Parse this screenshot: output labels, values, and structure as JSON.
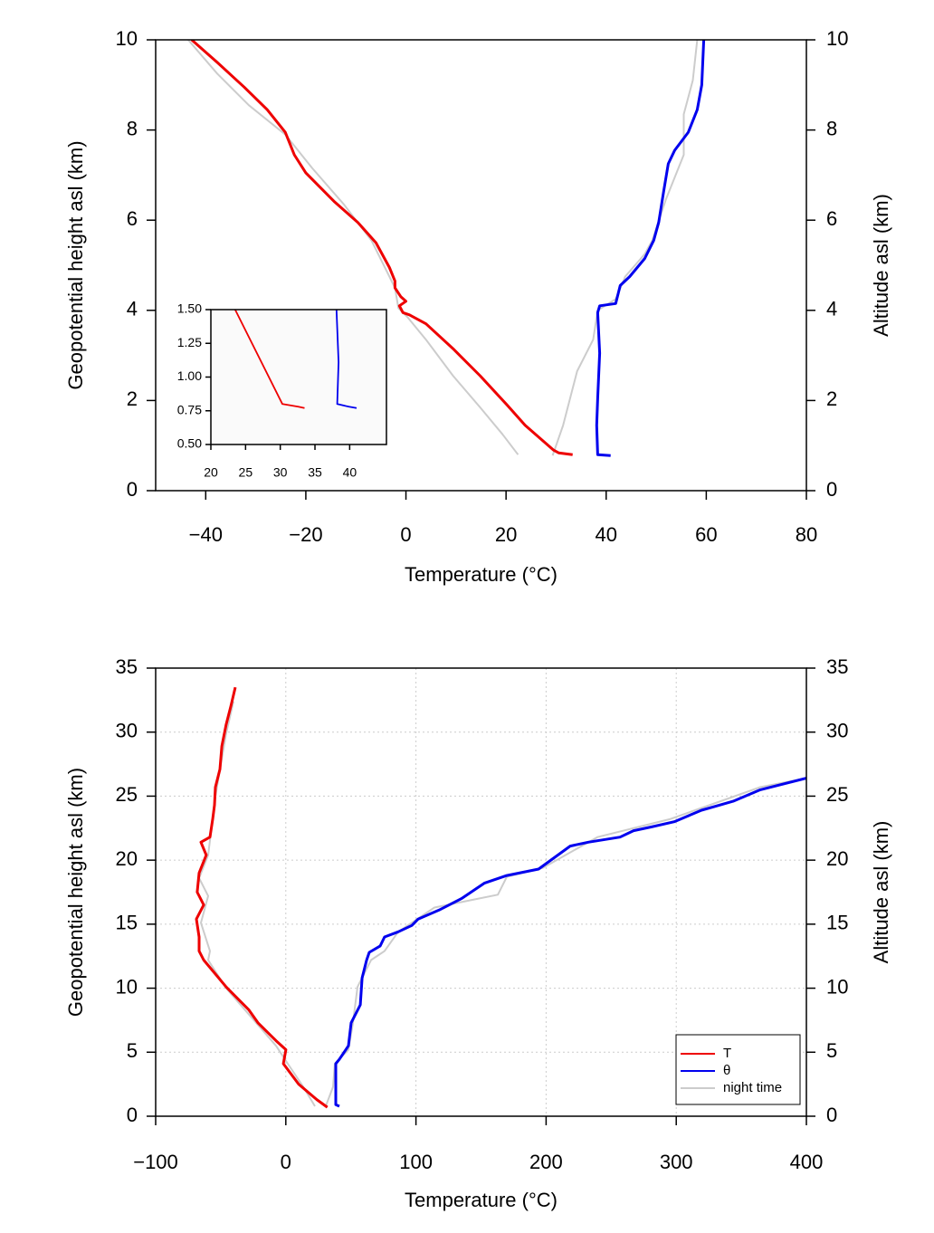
{
  "chart_data": [
    {
      "type": "line",
      "xlabel": "Temperature (°C)",
      "ylabel": "Geopotential height asl (km)",
      "y2label": "Altitude asl (km)",
      "xlim": [
        -50,
        80
      ],
      "ylim": [
        0,
        10
      ],
      "y2lim": [
        0,
        10
      ],
      "grid": false,
      "xticks": [
        {
          "value": -40,
          "label": "−40"
        },
        {
          "value": -20,
          "label": "−20"
        },
        0,
        20,
        40,
        60,
        80
      ],
      "yticks": [
        0,
        2,
        4,
        6,
        8,
        10
      ],
      "y2ticks": [
        0,
        2,
        4,
        6,
        8,
        10
      ],
      "series": [
        {
          "color": "#ee0000",
          "x": [
            33.3,
            30.5,
            29.5,
            23.8,
            20.2,
            14.8,
            9.4,
            4,
            0.7,
            -0.6,
            -1.3,
            0,
            -1,
            -2.2,
            -2.2,
            -3.3,
            -6,
            -9.6,
            -14.2,
            -20,
            -22.3,
            -24.1,
            -27.7,
            -32.3,
            -37.7,
            -42.8
          ],
          "y": [
            0.8,
            0.84,
            0.9,
            1.45,
            1.9,
            2.55,
            3.15,
            3.7,
            3.9,
            3.95,
            4.1,
            4.2,
            4.3,
            4.5,
            4.65,
            4.95,
            5.5,
            5.95,
            6.4,
            7.05,
            7.45,
            7.95,
            8.45,
            8.95,
            9.5,
            10
          ]
        },
        {
          "color": "#0000ee",
          "x": [
            40.9,
            38.3,
            38.1,
            38.3,
            38.7,
            38.3,
            38.7,
            41.9,
            42.8,
            44.7,
            47.7,
            49.5,
            50.5,
            51.5,
            52.4,
            53.7,
            56.4,
            58.2,
            59.1,
            59.5
          ],
          "y": [
            0.78,
            0.8,
            1.45,
            2.05,
            3.05,
            3.95,
            4.1,
            4.15,
            4.55,
            4.75,
            5.15,
            5.55,
            5.95,
            6.65,
            7.25,
            7.55,
            7.95,
            8.45,
            9.0,
            10
          ]
        },
        {
          "color": "#cccccc",
          "x": [
            22.4,
            19.3,
            14.8,
            9.4,
            4,
            0.3,
            -1.5,
            -2.2,
            -6.9,
            -12.4,
            -18.7,
            -24.1,
            -31.4,
            -37.7,
            -43.5
          ],
          "y": [
            0.8,
            1.25,
            1.85,
            2.55,
            3.35,
            3.85,
            4.05,
            4.5,
            5.55,
            6.35,
            7.15,
            7.9,
            8.55,
            9.25,
            10
          ]
        },
        {
          "color": "#cccccc",
          "x": [
            29.3,
            31.4,
            34.2,
            37.4,
            38.3,
            41.9,
            43.8,
            47.7,
            49.2,
            51.9,
            55.5,
            55.5,
            57.3,
            58.2
          ],
          "y": [
            0.78,
            1.45,
            2.65,
            3.35,
            4.0,
            4.25,
            4.75,
            5.25,
            5.55,
            6.45,
            7.45,
            8.35,
            9.1,
            10
          ]
        }
      ]
    },
    {
      "type": "line",
      "xlim": [
        20,
        45.3
      ],
      "ylim": [
        0.5,
        1.5
      ],
      "grid": false,
      "xticks": [
        20,
        25,
        30,
        35,
        40
      ],
      "yticks": [
        {
          "value": 0.5,
          "label": "0.50"
        },
        {
          "value": 0.75,
          "label": "0.75"
        },
        {
          "value": 1,
          "label": "1.00"
        },
        {
          "value": 1.25,
          "label": "1.25"
        },
        {
          "value": 1.5,
          "label": "1.50"
        }
      ],
      "series": [
        {
          "color": "#ee0000",
          "x": [
            23.5,
            30.3,
            32.6,
            33.5
          ],
          "y": [
            1.5,
            0.8,
            0.78,
            0.77
          ]
        },
        {
          "color": "#0000ee",
          "x": [
            38.1,
            38.4,
            38.2,
            39.9,
            41
          ],
          "y": [
            1.5,
            1.11,
            0.8,
            0.78,
            0.77
          ]
        }
      ]
    },
    {
      "type": "line",
      "xlabel": "Temperature (°C)",
      "ylabel": "Geopotential height asl (km)",
      "y2label": "Altitude asl (km)",
      "xlim": [
        -100,
        400
      ],
      "ylim": [
        0,
        35
      ],
      "y2lim": [
        0,
        35
      ],
      "grid": true,
      "legend": "lower right",
      "xticks": [
        {
          "value": -100,
          "label": "−100"
        },
        0,
        100,
        200,
        300,
        400
      ],
      "yticks": [
        0,
        5,
        10,
        15,
        20,
        25,
        30,
        35
      ],
      "y2ticks": [
        0,
        5,
        10,
        15,
        20,
        25,
        30,
        35
      ],
      "series": [
        {
          "name": "T",
          "color": "#ee0000",
          "x": [
            31.9,
            23.8,
            9.9,
            -1.9,
            0.1,
            -7.5,
            -21.4,
            -28.4,
            -45.8,
            -63.1,
            -66.6,
            -66.6,
            -68.7,
            -63.1,
            -68.1,
            -66.6,
            -61.1,
            -65.2,
            -58.3,
            -56.2,
            -54.8,
            -54.1,
            -50.6,
            -49.2,
            -45.8,
            -42.3,
            -38.8
          ],
          "y": [
            0.7,
            1.3,
            2.5,
            4.1,
            5.2,
            5.9,
            7.3,
            8.3,
            10.1,
            12.2,
            12.9,
            14,
            15.4,
            16.5,
            17.5,
            19,
            20.4,
            21.4,
            21.8,
            23.2,
            24.3,
            25.7,
            27.1,
            28.9,
            30.6,
            32,
            33.5
          ]
        },
        {
          "name": "θ",
          "color": "#0000ee",
          "x": [
            41.2,
            38.4,
            38.4,
            41.2,
            48.1,
            50.2,
            57.2,
            58.6,
            62.1,
            64.1,
            72.5,
            75.9,
            86.4,
            96.8,
            101.7,
            117.7,
            135,
            152.5,
            169.8,
            194.2,
            218.5,
            232.4,
            256.8,
            267.2,
            281.1,
            298.5,
            319.4,
            343.7,
            364.6,
            400
          ],
          "y": [
            0.78,
            0.9,
            4.1,
            4.45,
            5.5,
            7.3,
            8.7,
            10.8,
            12.2,
            12.8,
            13.3,
            14,
            14.4,
            14.9,
            15.4,
            16.1,
            17,
            18.2,
            18.8,
            19.3,
            21.1,
            21.4,
            21.8,
            22.3,
            22.6,
            23,
            23.9,
            24.6,
            25.5,
            26.4
          ]
        },
        {
          "name": "night time",
          "color": "#cccccc",
          "x": [
            22.4,
            13.4,
            1.5,
            -7.5,
            -45.8,
            -59.7,
            -58.3,
            -65.2,
            -59.7,
            -66.6,
            -59.7,
            -54.1,
            -45.8,
            -40.2
          ],
          "y": [
            0.78,
            2.3,
            4.1,
            5.5,
            10,
            12.2,
            12.9,
            15.1,
            17.2,
            18.6,
            20.4,
            25,
            29.9,
            32.4
          ]
        },
        {
          "color": "#cccccc",
          "x": [
            30.7,
            36.3,
            37.7,
            48.1,
            51.6,
            55.1,
            65.5,
            75.9,
            86.4,
            114.2,
            162.9,
            169.8,
            197.6,
            239.4,
            295,
            364.6,
            400
          ],
          "y": [
            0.78,
            2.3,
            4.1,
            5.2,
            7.3,
            10.1,
            12.2,
            12.9,
            14.4,
            16.3,
            17.3,
            18.7,
            19.4,
            21.8,
            23.2,
            25.7,
            26.4
          ]
        }
      ]
    }
  ]
}
